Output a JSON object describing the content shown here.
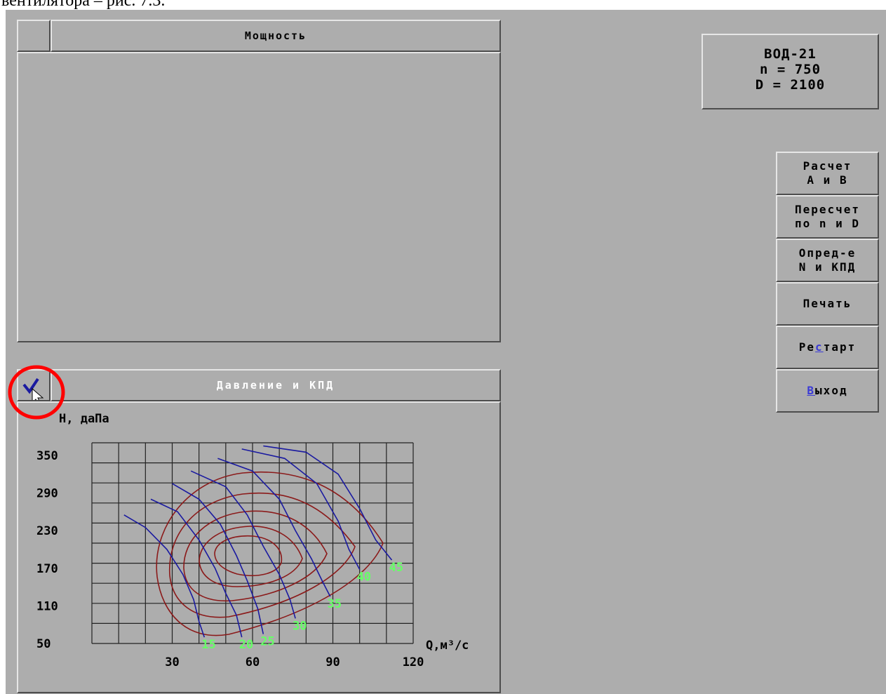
{
  "document_text": "вентилятора – рис. 7.3.",
  "power_panel": {
    "title": "Мощность"
  },
  "pressure_panel": {
    "title": "Давление и КПД"
  },
  "info": {
    "model": "ВОД-21",
    "n_line": "n = 750",
    "d_line": "D = 2100"
  },
  "buttons": {
    "calc_ab": {
      "line1": "Расчет",
      "line2": "А и В"
    },
    "recalc": {
      "line1": "Пересчет",
      "line2": "по n и D"
    },
    "determine": {
      "line1": "Опред-е",
      "line2": "N и КПД"
    },
    "print": {
      "label": "Печать"
    },
    "restart": {
      "pre": "Ре",
      "hot": "с",
      "post": "тарт"
    },
    "exit": {
      "hot": "В",
      "post": "ыход"
    }
  },
  "colors": {
    "background": "#adadad",
    "pressure_curves": "#1a1aa0",
    "efficiency_contours": "#8b1a1a",
    "curve_labels": "#66ff66",
    "highlight_circle": "#ff0000",
    "hotkey": "#3b3bd6"
  },
  "chart_data": {
    "type": "line",
    "ylabel": "H, даПа",
    "xlabel": "Q,м³/с",
    "xlim": [
      0,
      120
    ],
    "ylim": [
      50,
      370
    ],
    "x_ticks": [
      30,
      60,
      90,
      120
    ],
    "y_ticks": [
      50,
      110,
      170,
      230,
      290,
      350
    ],
    "grid": true,
    "series": [
      {
        "name": "15",
        "points": [
          [
            12,
            255
          ],
          [
            20,
            235
          ],
          [
            28,
            200
          ],
          [
            34,
            160
          ],
          [
            38,
            120
          ],
          [
            40,
            85
          ],
          [
            42,
            60
          ]
        ]
      },
      {
        "name": "20",
        "points": [
          [
            22,
            280
          ],
          [
            32,
            260
          ],
          [
            40,
            215
          ],
          [
            46,
            170
          ],
          [
            50,
            130
          ],
          [
            54,
            95
          ],
          [
            56,
            60
          ]
        ]
      },
      {
        "name": "25",
        "points": [
          [
            30,
            305
          ],
          [
            40,
            280
          ],
          [
            48,
            240
          ],
          [
            54,
            190
          ],
          [
            58,
            150
          ],
          [
            62,
            105
          ],
          [
            64,
            65
          ]
        ]
      },
      {
        "name": "30",
        "points": [
          [
            37,
            325
          ],
          [
            50,
            300
          ],
          [
            58,
            255
          ],
          [
            64,
            205
          ],
          [
            70,
            160
          ],
          [
            74,
            120
          ],
          [
            76,
            90
          ]
        ]
      },
      {
        "name": "35",
        "points": [
          [
            47,
            345
          ],
          [
            60,
            325
          ],
          [
            70,
            280
          ],
          [
            76,
            230
          ],
          [
            82,
            185
          ],
          [
            86,
            150
          ],
          [
            89,
            125
          ]
        ]
      },
      {
        "name": "40",
        "points": [
          [
            56,
            360
          ],
          [
            72,
            345
          ],
          [
            84,
            305
          ],
          [
            92,
            245
          ],
          [
            96,
            200
          ],
          [
            100,
            168
          ]
        ]
      },
      {
        "name": "45",
        "points": [
          [
            64,
            365
          ],
          [
            80,
            355
          ],
          [
            92,
            320
          ],
          [
            100,
            265
          ],
          [
            106,
            215
          ],
          [
            112,
            183
          ]
        ]
      }
    ]
  }
}
